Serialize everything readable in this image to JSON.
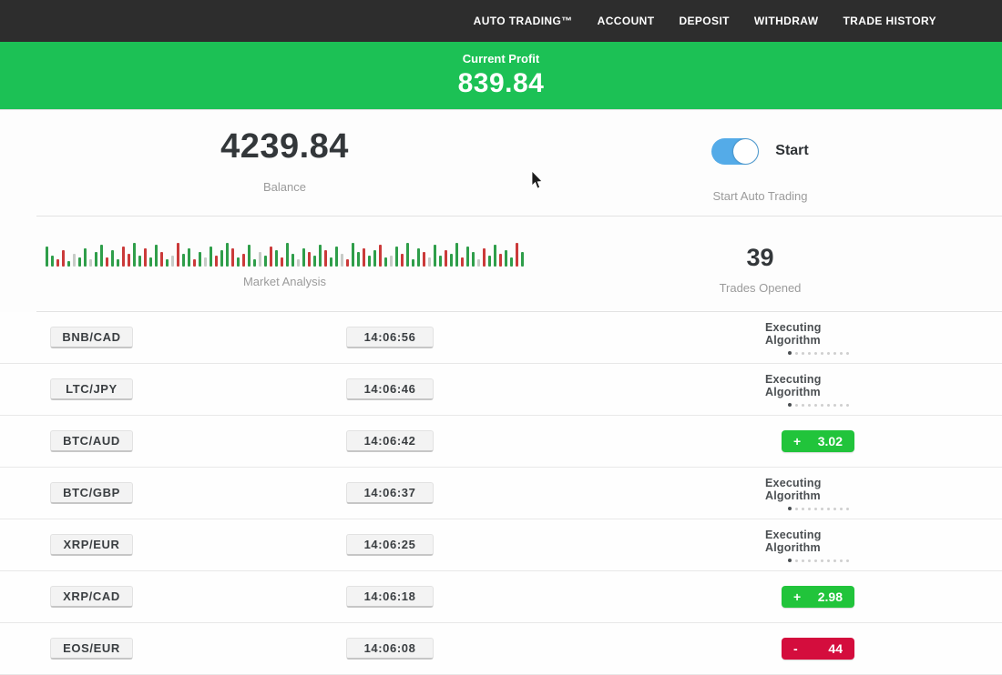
{
  "nav": {
    "items": [
      "AUTO TRADING™",
      "ACCOUNT",
      "DEPOSIT",
      "WITHDRAW",
      "TRADE HISTORY"
    ]
  },
  "banner": {
    "label": "Current Profit",
    "value": "839.84"
  },
  "stats": {
    "balance": {
      "value": "4239.84",
      "label": "Balance"
    },
    "auto_trading": {
      "toggle_label": "Start",
      "label": "Start Auto Trading",
      "enabled": true
    },
    "market": {
      "label": "Market Analysis"
    },
    "trades": {
      "value": "39",
      "label": "Trades Opened"
    }
  },
  "chart_data": {
    "type": "bar",
    "title": "Market Analysis",
    "note": "mini candlestick-style market bars, no axes; h = relative height px, c = color key",
    "bars": [
      "g22",
      "g12",
      "r8",
      "r18",
      "g6",
      "x14",
      "g10",
      "g20",
      "x8",
      "g16",
      "g24",
      "r10",
      "g18",
      "g8",
      "r22",
      "r14",
      "g26",
      "g12",
      "r20",
      "g10",
      "g24",
      "r16",
      "g8",
      "x12",
      "r26",
      "g14",
      "g20",
      "r8",
      "g16",
      "x10",
      "g22",
      "r12",
      "g18",
      "g26",
      "r20",
      "g10",
      "r14",
      "g24",
      "g8",
      "x16",
      "g12",
      "r22",
      "g18",
      "r10",
      "g26",
      "g14",
      "x8",
      "g20",
      "r16",
      "g12",
      "g24",
      "r18",
      "g10",
      "g22",
      "x14",
      "r8",
      "g26",
      "g16",
      "r20",
      "g12",
      "g18",
      "r24",
      "g10",
      "x12",
      "g22",
      "r14",
      "g26",
      "g8",
      "g20",
      "r16",
      "x10",
      "g24",
      "g12",
      "r18",
      "g14",
      "g26",
      "r10",
      "g22",
      "g16",
      "x8",
      "r20",
      "g12",
      "g24",
      "r14",
      "g18",
      "g10",
      "r26",
      "g16"
    ],
    "bar_colors": {
      "g": "#2f9e4a",
      "r": "#cb3a3a",
      "x": "#c7cbc7"
    }
  },
  "trades_table": {
    "executing_label": "Executing Algorithm",
    "progress_dots": 10,
    "rows": [
      {
        "pair": "BNB/CAD",
        "time": "14:06:56",
        "status": "executing"
      },
      {
        "pair": "LTC/JPY",
        "time": "14:06:46",
        "status": "executing"
      },
      {
        "pair": "BTC/AUD",
        "time": "14:06:42",
        "status": "profit",
        "sign": "+",
        "value": "3.02"
      },
      {
        "pair": "BTC/GBP",
        "time": "14:06:37",
        "status": "executing"
      },
      {
        "pair": "XRP/EUR",
        "time": "14:06:25",
        "status": "executing"
      },
      {
        "pair": "XRP/CAD",
        "time": "14:06:18",
        "status": "profit",
        "sign": "+",
        "value": "2.98"
      },
      {
        "pair": "EOS/EUR",
        "time": "14:06:08",
        "status": "loss",
        "sign": "-",
        "value": "44"
      }
    ]
  },
  "colors": {
    "nav_bg": "#2d2d2d",
    "banner_green": "#1cc155",
    "badge_green": "#21c43b",
    "badge_red": "#d40d3d",
    "toggle_blue": "#54abe8"
  }
}
